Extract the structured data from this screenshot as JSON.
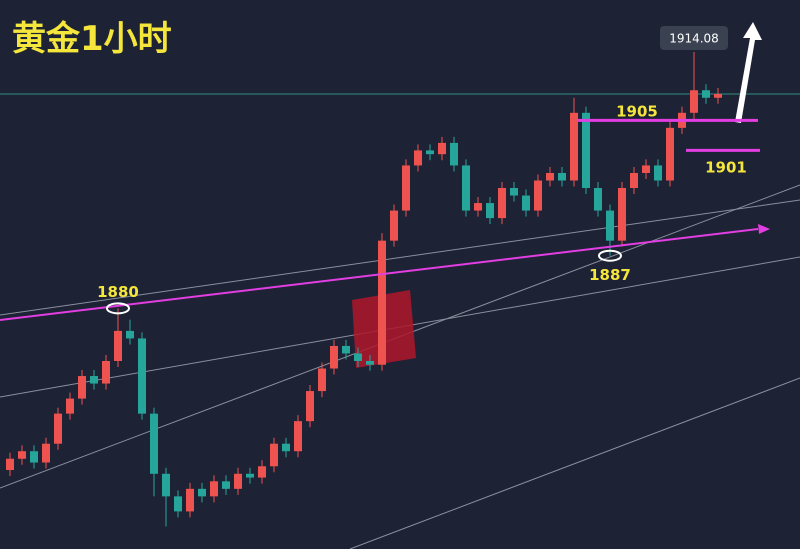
{
  "chart_data": {
    "type": "candlestick",
    "title": "黄金1小时",
    "ylim": [
      1848,
      1921
    ],
    "up_color": "#ef5350",
    "down_color": "#26a69a",
    "open": [
      1858.5,
      1860,
      1861,
      1859.5,
      1862,
      1866,
      1868,
      1871,
      1870,
      1873,
      1877,
      1876,
      1866,
      1858,
      1855,
      1853,
      1856,
      1855,
      1857,
      1856,
      1858,
      1857.5,
      1859,
      1862,
      1861,
      1865,
      1869,
      1872,
      1875,
      1874,
      1873,
      1872.5,
      1889,
      1893,
      1899,
      1901,
      1900.5,
      1902,
      1899,
      1893,
      1894,
      1892,
      1896,
      1895,
      1893,
      1897,
      1898,
      1897,
      1906,
      1896,
      1893,
      1889,
      1896,
      1898,
      1899,
      1897,
      1904,
      1906,
      1909,
      1908
    ],
    "high": [
      1860.8,
      1861.8,
      1861.8,
      1862.8,
      1866.8,
      1868.8,
      1871.8,
      1871.8,
      1873.8,
      1880,
      1878.5,
      1876.8,
      1866.8,
      1858.8,
      1855.8,
      1856.8,
      1856.8,
      1857.8,
      1857.8,
      1858.8,
      1858.8,
      1859.8,
      1862.8,
      1862.8,
      1865.8,
      1869.8,
      1872.8,
      1875.8,
      1875.8,
      1874.8,
      1873.8,
      1890,
      1893.8,
      1899.8,
      1901.8,
      1901.8,
      1902.8,
      1902.8,
      1899.8,
      1894.8,
      1894.8,
      1896.8,
      1896.8,
      1895.8,
      1897.8,
      1898.8,
      1898.8,
      1908,
      1906.8,
      1896.8,
      1893.8,
      1896.8,
      1898.8,
      1899.8,
      1899.8,
      1904.8,
      1906.8,
      1914.08,
      1909.8,
      1909.3
    ],
    "low": [
      1857.7,
      1859.2,
      1858.7,
      1858.7,
      1861.2,
      1865.2,
      1867.2,
      1869.2,
      1869.2,
      1872.2,
      1875.2,
      1865.2,
      1855,
      1851,
      1852.2,
      1852.2,
      1854.2,
      1854.2,
      1855.2,
      1855.2,
      1856.7,
      1856.7,
      1858.2,
      1860.2,
      1860.2,
      1864.2,
      1868.2,
      1871.2,
      1873.2,
      1872.2,
      1871.7,
      1871.7,
      1888.2,
      1892.2,
      1898.2,
      1899.7,
      1899.7,
      1898.2,
      1892.2,
      1892.2,
      1891.2,
      1891.2,
      1894.2,
      1892.2,
      1892.2,
      1896.2,
      1896.2,
      1896.2,
      1895.2,
      1892.2,
      1887,
      1888.2,
      1895.2,
      1897.2,
      1896.2,
      1896.2,
      1903.2,
      1905.2,
      1907.2,
      1907.2
    ],
    "close": [
      1860,
      1861,
      1859.5,
      1862,
      1866,
      1868,
      1871,
      1870,
      1873,
      1877,
      1876,
      1866,
      1858,
      1855,
      1853,
      1856,
      1855,
      1857,
      1856,
      1858,
      1857.5,
      1859,
      1862,
      1861,
      1865,
      1869,
      1872,
      1875,
      1874,
      1873,
      1872.5,
      1889,
      1893,
      1899,
      1901,
      1900.5,
      1902,
      1899,
      1893,
      1894,
      1892,
      1896,
      1895,
      1893,
      1897,
      1898,
      1897,
      1906,
      1896,
      1893,
      1889,
      1896,
      1898,
      1899,
      1897,
      1904,
      1906,
      1909,
      1908,
      1908.5
    ],
    "levels": [
      {
        "value": 1905,
        "label": "1905"
      },
      {
        "value": 1901,
        "label": "1901"
      }
    ],
    "points": [
      {
        "value": 1880,
        "label": "1880"
      },
      {
        "value": 1887,
        "label": "1887"
      }
    ],
    "high_label": {
      "value": 1914.08,
      "label": "1914.08"
    }
  }
}
